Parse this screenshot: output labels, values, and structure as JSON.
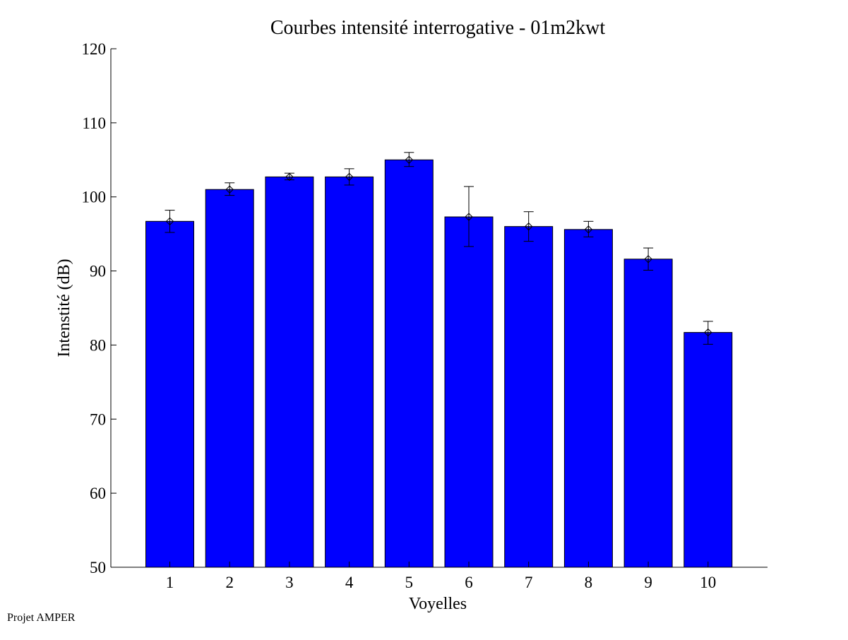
{
  "footer": {
    "text": "Projet AMPER"
  },
  "chart_data": {
    "type": "bar",
    "title": "Courbes intensité interrogative - 01m2kwt",
    "xlabel": "Voyelles",
    "ylabel": "Intenstité (dB)",
    "categories": [
      "1",
      "2",
      "3",
      "4",
      "5",
      "6",
      "7",
      "8",
      "9",
      "10"
    ],
    "values": [
      96.7,
      101.0,
      102.7,
      102.7,
      105.0,
      97.3,
      96.0,
      95.6,
      91.6,
      81.7
    ],
    "error_low": [
      95.2,
      100.2,
      102.3,
      101.6,
      104.1,
      93.3,
      94.0,
      94.6,
      90.1,
      80.1
    ],
    "error_high": [
      98.2,
      101.9,
      103.2,
      103.8,
      106.0,
      101.4,
      98.0,
      96.7,
      93.1,
      83.2
    ],
    "ylim": [
      50,
      120
    ],
    "yticks": [
      "50",
      "60",
      "70",
      "80",
      "90",
      "100",
      "110",
      "120"
    ],
    "grid": false,
    "colors": {
      "bar": "#0000ff",
      "error_bar": "#000000"
    }
  }
}
